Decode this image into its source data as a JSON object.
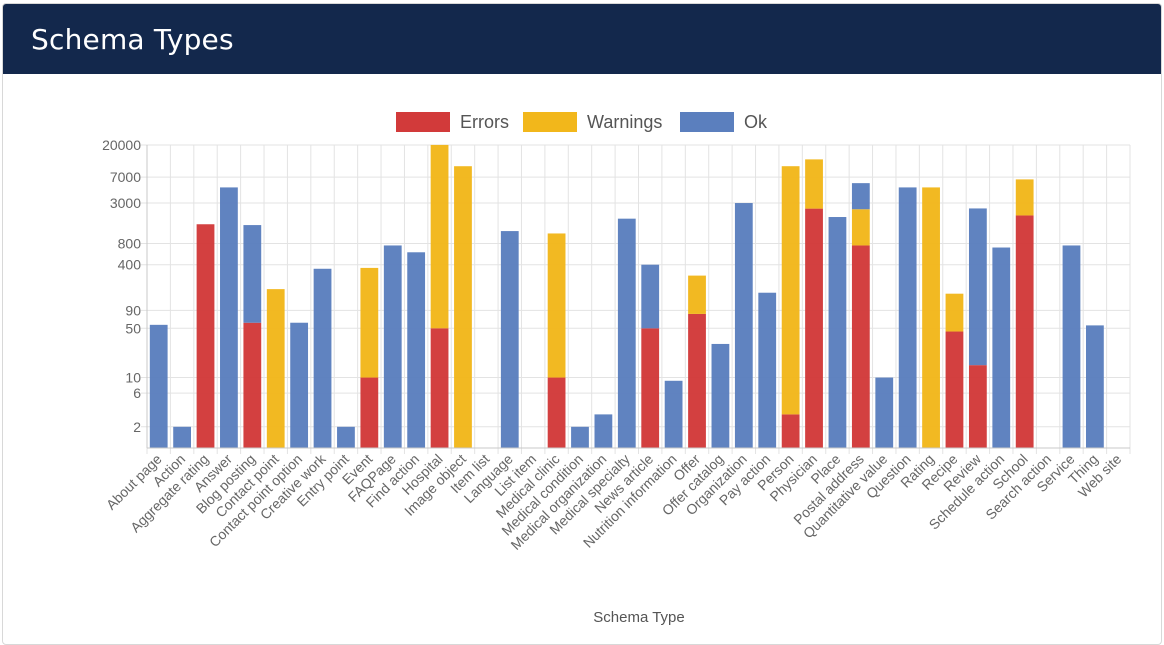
{
  "header": {
    "title": "Schema Types"
  },
  "colors": {
    "errors": "#d23a3a",
    "warnings": "#f2b71b",
    "ok": "#5b7fbe",
    "header_bg": "#13284c"
  },
  "chart_data": {
    "type": "bar",
    "stacked": true,
    "y_scale": "log",
    "ylim": [
      1,
      20000
    ],
    "y_ticks": [
      "20000",
      "7000",
      "3000",
      "800",
      "400",
      "90",
      "50",
      "10",
      "6",
      "2"
    ],
    "xlabel": "Schema Type",
    "ylabel": "",
    "legend_position": "top",
    "grid": true,
    "categories": [
      "About page",
      "Action",
      "Aggregate rating",
      "Answer",
      "Blog posting",
      "Contact point",
      "Contact point option",
      "Creative work",
      "Entry point",
      "Event",
      "FAQPage",
      "Find action",
      "Hospital",
      "Image object",
      "Item list",
      "Language",
      "List item",
      "Medical clinic",
      "Medical condition",
      "Medical organization",
      "Medical specialty",
      "News article",
      "Nutrition information",
      "Offer",
      "Offer catalog",
      "Organization",
      "Pay action",
      "Person",
      "Physician",
      "Place",
      "Postal address",
      "Quantitative value",
      "Question",
      "Rating",
      "Recipe",
      "Review",
      "Schedule action",
      "School",
      "Search action",
      "Service",
      "Thing",
      "Web site"
    ],
    "series": [
      {
        "name": "Errors",
        "color": "#d23a3a",
        "values": [
          0,
          0,
          1500,
          0,
          60,
          0,
          0,
          0,
          0,
          10,
          0,
          0,
          50,
          0,
          0,
          0,
          0,
          10,
          0,
          0,
          0,
          50,
          0,
          80,
          0,
          0,
          0,
          3,
          2500,
          0,
          750,
          0,
          0,
          0,
          45,
          15,
          1,
          2000,
          1,
          0,
          0,
          0
        ]
      },
      {
        "name": "Warnings",
        "color": "#f2b71b",
        "values": [
          0,
          0,
          0,
          0,
          0,
          180,
          0,
          0,
          0,
          350,
          0,
          0,
          20000,
          10000,
          0,
          0,
          0,
          1100,
          0,
          1,
          0,
          0,
          0,
          200,
          0,
          1,
          0,
          10000,
          10000,
          0,
          1700,
          0,
          0,
          5000,
          110,
          0,
          0,
          4500,
          0,
          0,
          0,
          0
        ]
      },
      {
        "name": "Ok",
        "color": "#5b7fbe",
        "values": [
          56,
          2,
          0,
          5000,
          1400,
          0,
          60,
          350,
          2,
          0,
          750,
          600,
          0,
          0,
          1,
          1200,
          1,
          0,
          2,
          2,
          1800,
          350,
          9,
          0,
          30,
          3000,
          160,
          0,
          0,
          1900,
          3300,
          10,
          5000,
          0,
          0,
          2500,
          700,
          0,
          0,
          750,
          55,
          1
        ]
      }
    ]
  }
}
